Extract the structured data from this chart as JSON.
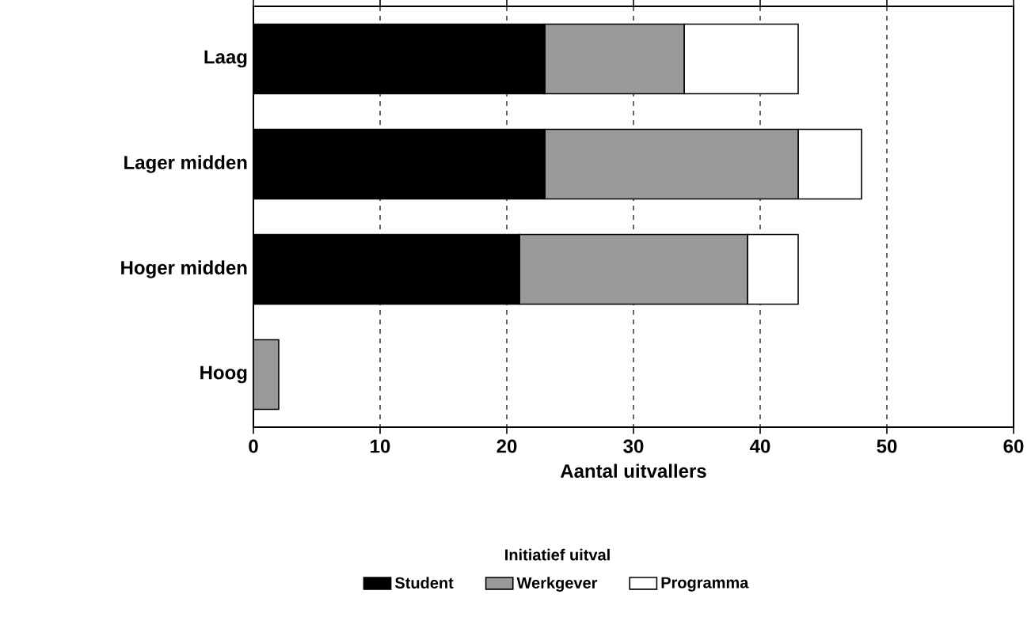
{
  "chart_data": {
    "type": "bar",
    "orientation": "horizontal",
    "stacked": true,
    "xlabel": "Aantal uitvallers",
    "legend_title": "Initiatief uitval",
    "categories": [
      "Laag",
      "Lager midden",
      "Hoger midden",
      "Hoog"
    ],
    "series": [
      {
        "name": "Student",
        "color": "#000000",
        "values": [
          23,
          23,
          21,
          0
        ]
      },
      {
        "name": "Werkgever",
        "color": "#9a9a9a",
        "values": [
          11,
          20,
          18,
          2
        ]
      },
      {
        "name": "Programma",
        "color": "#ffffff",
        "values": [
          9,
          5,
          4,
          0
        ]
      }
    ],
    "xlim": [
      0,
      60
    ],
    "xticks": [
      0,
      10,
      20,
      30,
      40,
      50,
      60
    ],
    "grid": "x",
    "legend": "bottom"
  }
}
